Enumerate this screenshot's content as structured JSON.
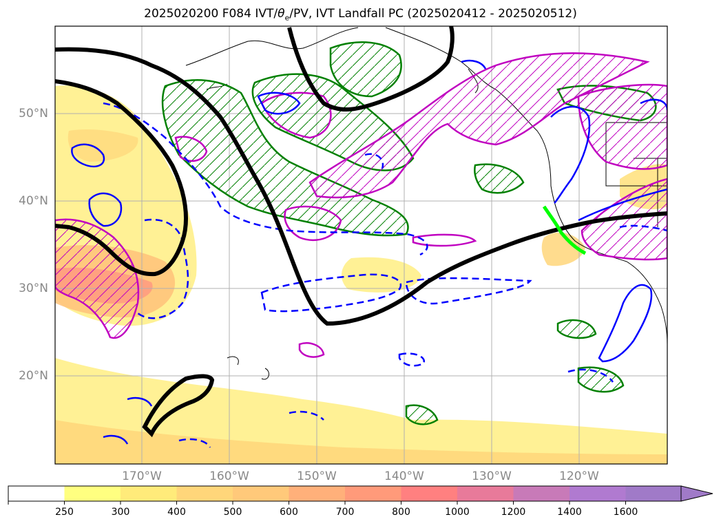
{
  "title": {
    "prefix": "2025020200 F084 IVT/",
    "theta": "θ",
    "sub": "e",
    "suffix": "/PV, IVT Landfall PC (2025020412 - 2025020512)"
  },
  "axes": {
    "lat_ticks": [
      "50°N",
      "40°N",
      "30°N",
      "20°N"
    ],
    "lon_ticks": [
      "170°W",
      "160°W",
      "150°W",
      "140°W",
      "130°W",
      "120°W"
    ]
  },
  "colorbar": {
    "ticks": [
      "250",
      "300",
      "400",
      "500",
      "600",
      "700",
      "800",
      "1000",
      "1200",
      "1400",
      "1600"
    ],
    "colors": [
      "#ffffff",
      "#ffff80",
      "#ffeb7a",
      "#ffd67a",
      "#ffc97a",
      "#ffb07a",
      "#ff9a7a",
      "#ff8080",
      "#e87a9a",
      "#c87ab8",
      "#b07ad0",
      "#a07ac8"
    ]
  },
  "styles": {
    "jet_color": "#000000",
    "blue_contour": "#0000ff",
    "green_contour": "#008000",
    "magenta_contour": "#c000c0",
    "landfall_color": "#00ff00",
    "grid_color": "#b0b0b0"
  }
}
